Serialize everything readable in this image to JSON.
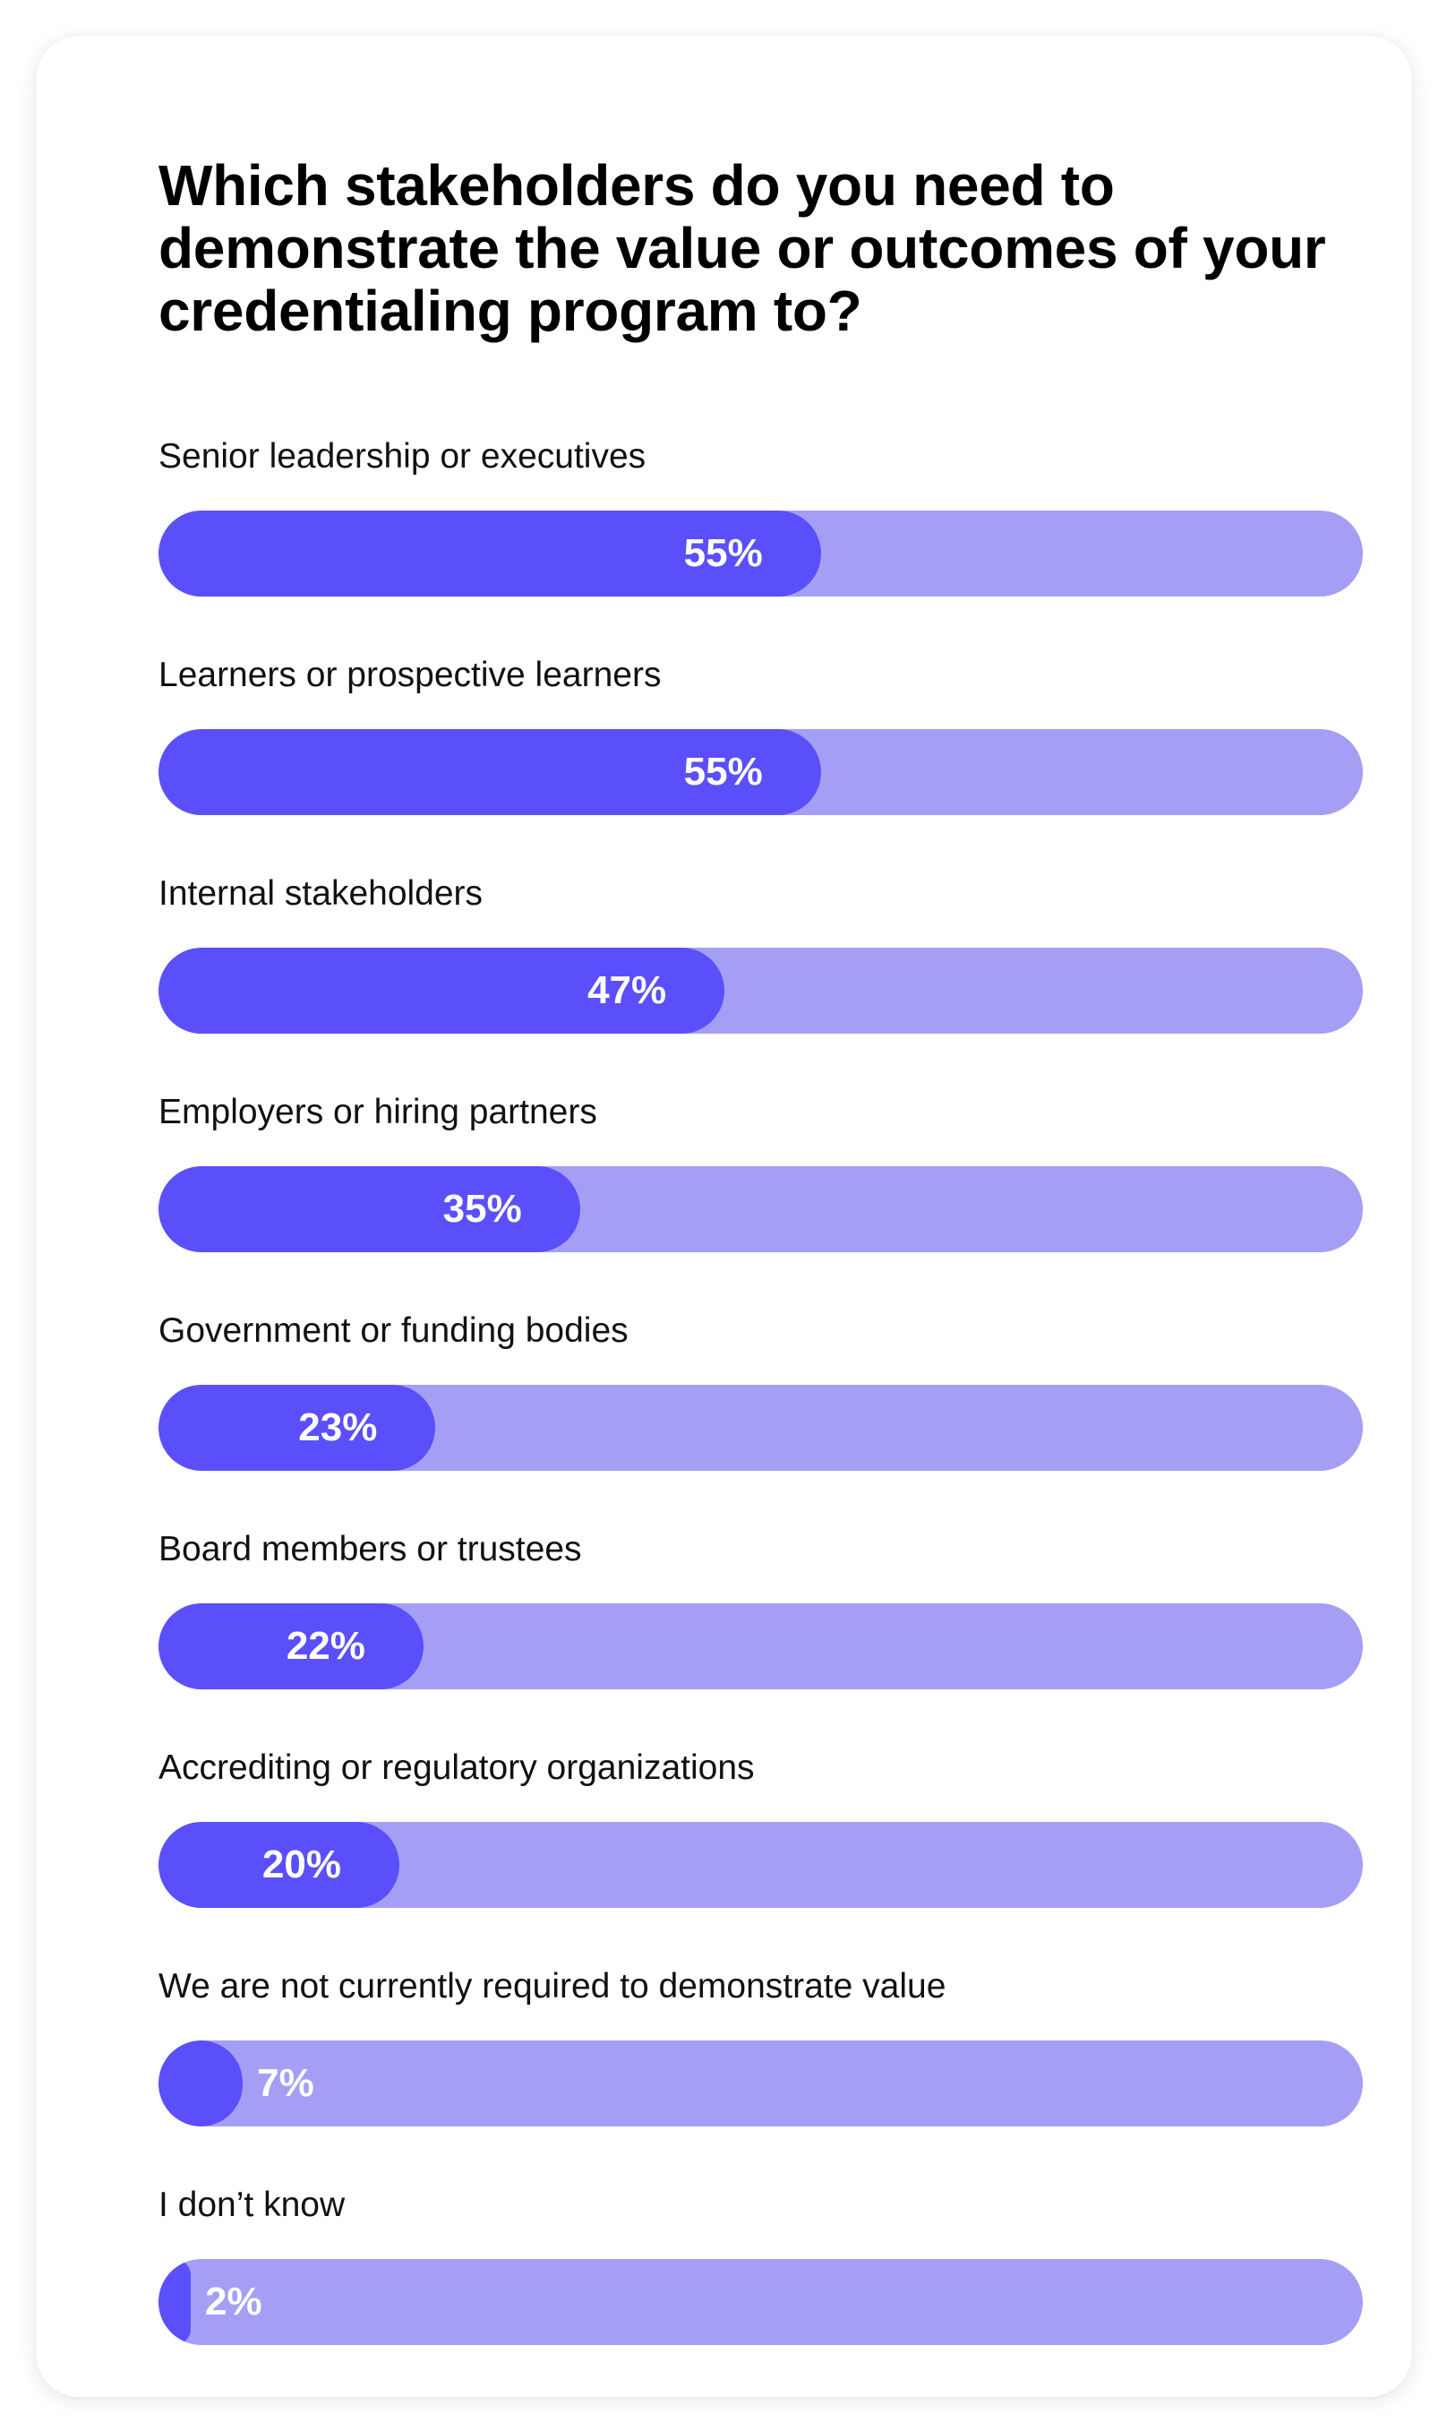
{
  "chart_data": {
    "type": "bar",
    "orientation": "horizontal",
    "title": "Which stakeholders do you need to demonstrate the value or outcomes of your credentialing program to?",
    "xlim": [
      0,
      100
    ],
    "categories": [
      "Senior leadership or executives",
      "Learners or prospective learners",
      "Internal stakeholders",
      "Employers or hiring partners",
      "Government or funding bodies",
      "Board members or trustees",
      "Accrediting or regulatory organizations",
      "We are not currently required to demonstrate value",
      "I don’t know"
    ],
    "values": [
      55,
      55,
      47,
      35,
      23,
      22,
      20,
      7,
      2
    ],
    "value_labels": [
      "55%",
      "55%",
      "47%",
      "35%",
      "23%",
      "22%",
      "20%",
      "7%",
      "2%"
    ],
    "colors": {
      "bar_fill": "#5a4ffb",
      "bar_track": "#a49ff5",
      "value_text": "#ffffff"
    }
  }
}
